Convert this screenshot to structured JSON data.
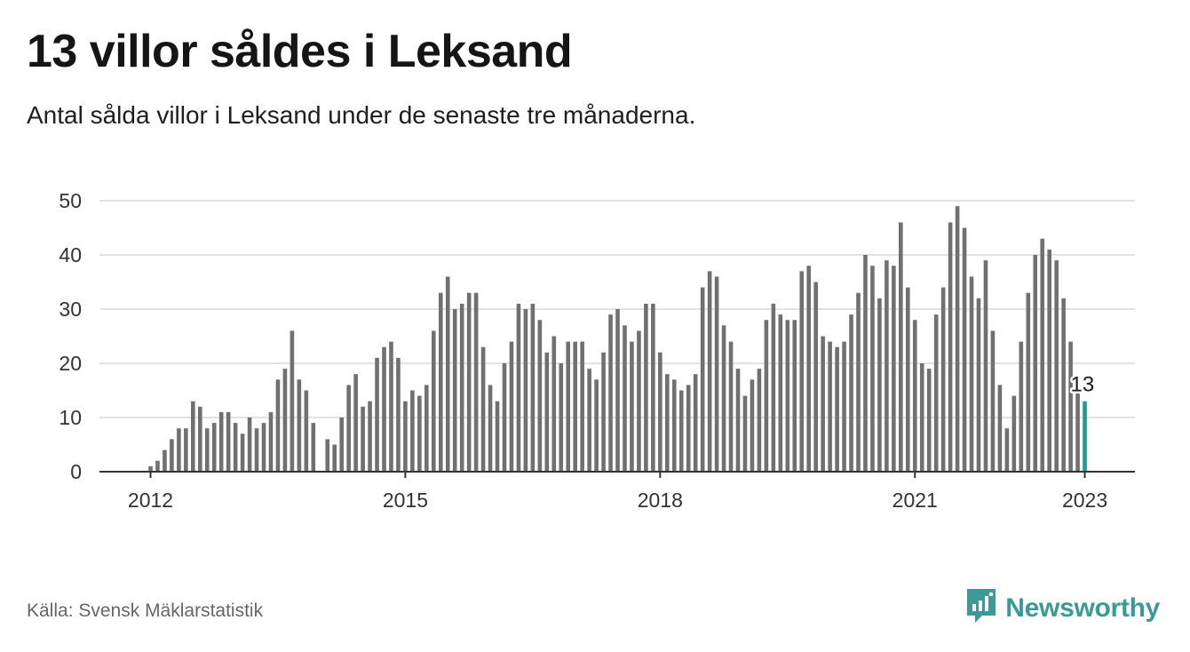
{
  "title": "13 villor såldes i Leksand",
  "subtitle": "Antal sålda villor i Leksand under de senaste tre månaderna.",
  "source": "Källa: Svensk Mäklarstatistik",
  "brand": {
    "name": "Newsworthy",
    "icon": "newsworthy-logo-icon",
    "color": "#3a9a95"
  },
  "colors": {
    "bar": "#707070",
    "highlight": "#1a9e96",
    "grid": "#d9d9d9",
    "axis": "#333333",
    "tick_text": "#333333"
  },
  "chart_data": {
    "type": "bar",
    "title": "13 villor såldes i Leksand",
    "subtitle": "Antal sålda villor i Leksand under de senaste tre månaderna.",
    "xlabel": "",
    "ylabel": "",
    "ylim": [
      0,
      50
    ],
    "yticks": [
      0,
      10,
      20,
      30,
      40,
      50
    ],
    "grid": true,
    "x_ticks": [
      {
        "label": "2012",
        "index": 0
      },
      {
        "label": "2015",
        "index": 36
      },
      {
        "label": "2018",
        "index": 72
      },
      {
        "label": "2021",
        "index": 108
      },
      {
        "label": "2023",
        "index": 132
      }
    ],
    "annotation": {
      "text": "13",
      "index": 132
    },
    "highlight_index": 132,
    "start": "2012-01",
    "end": "2023-01",
    "frequency": "monthly",
    "values": [
      1,
      2,
      4,
      6,
      8,
      8,
      13,
      12,
      8,
      9,
      11,
      11,
      9,
      7,
      10,
      8,
      9,
      11,
      17,
      19,
      26,
      17,
      15,
      9,
      0,
      6,
      5,
      10,
      16,
      18,
      12,
      13,
      21,
      23,
      24,
      21,
      13,
      15,
      14,
      16,
      26,
      33,
      36,
      30,
      31,
      33,
      33,
      23,
      16,
      13,
      20,
      24,
      31,
      30,
      31,
      28,
      22,
      25,
      20,
      24,
      24,
      24,
      19,
      17,
      22,
      29,
      30,
      27,
      24,
      26,
      31,
      31,
      22,
      18,
      17,
      15,
      16,
      18,
      34,
      37,
      36,
      27,
      24,
      19,
      14,
      17,
      19,
      28,
      31,
      29,
      28,
      28,
      37,
      38,
      35,
      25,
      24,
      23,
      24,
      29,
      33,
      40,
      38,
      32,
      39,
      38,
      46,
      34,
      28,
      20,
      19,
      29,
      34,
      46,
      49,
      45,
      36,
      32,
      39,
      26,
      16,
      8,
      14,
      24,
      33,
      40,
      43,
      41,
      39,
      32,
      24,
      15,
      13
    ]
  }
}
